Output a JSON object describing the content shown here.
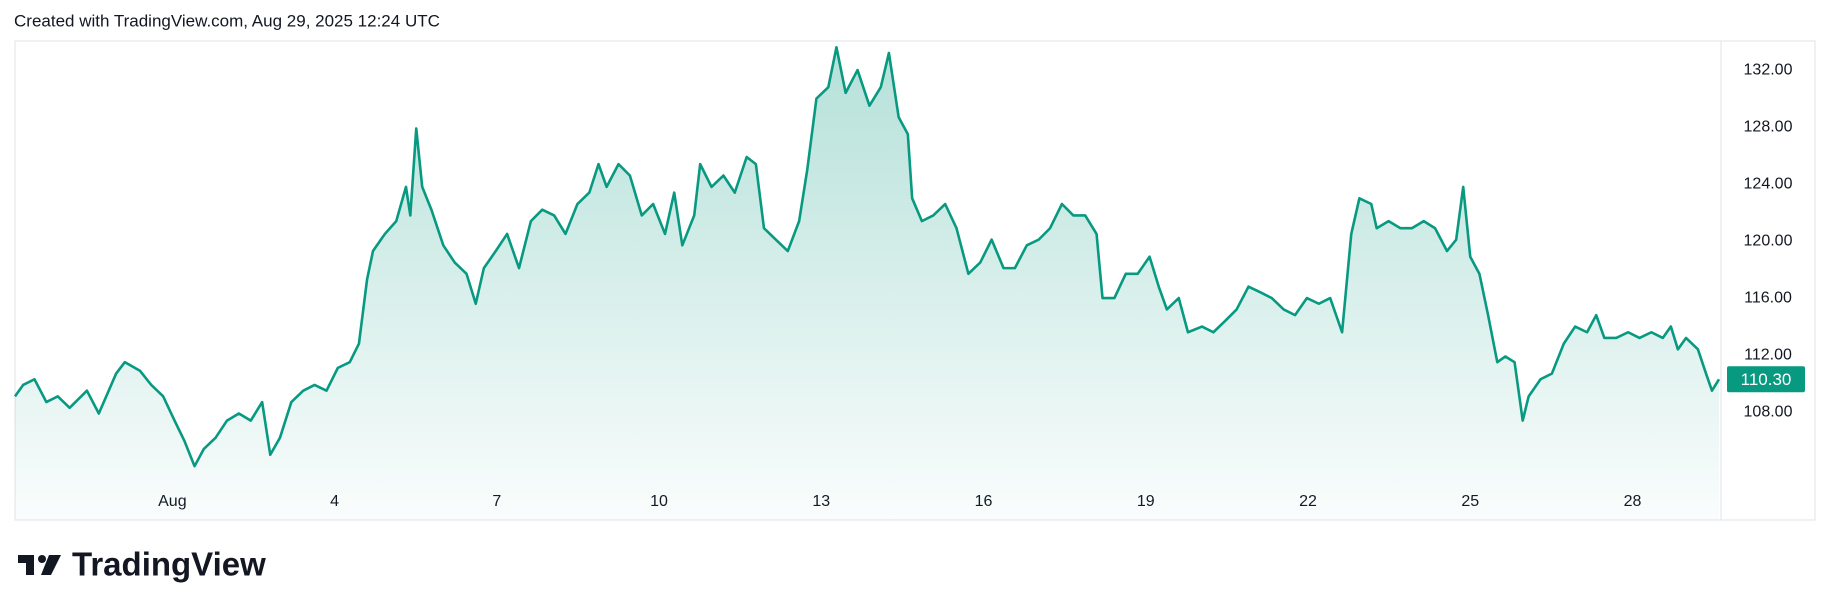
{
  "chart_data": {
    "type": "area",
    "title": "Created with TradingView.com, Aug 29, 2025 12:24 UTC",
    "watermark": "TradingView",
    "color": "#089981",
    "grid": false,
    "x": [
      -1.91,
      -1.76,
      -1.55,
      -1.33,
      -1.12,
      -0.9,
      -0.58,
      -0.36,
      -0.04,
      0.12,
      0.4,
      0.61,
      0.83,
      1.04,
      1.22,
      1.41,
      1.58,
      1.8,
      2.01,
      2.23,
      2.45,
      2.66,
      2.81,
      2.99,
      3.2,
      3.42,
      3.63,
      3.85,
      4.06,
      4.28,
      4.45,
      4.6,
      4.71,
      4.93,
      5.14,
      5.32,
      5.4,
      5.51,
      5.62,
      5.79,
      6.01,
      6.22,
      6.44,
      6.61,
      6.76,
      6.98,
      7.19,
      7.41,
      7.63,
      7.84,
      8.06,
      8.27,
      8.49,
      8.71,
      8.88,
      9.03,
      9.25,
      9.46,
      9.68,
      9.89,
      10.11,
      10.28,
      10.43,
      10.65,
      10.76,
      10.97,
      11.19,
      11.4,
      11.62,
      11.79,
      11.94,
      12.16,
      12.38,
      12.59,
      12.74,
      12.91,
      13.13,
      13.28,
      13.45,
      13.67,
      13.89,
      14.1,
      14.25,
      14.43,
      14.6,
      14.68,
      14.86,
      15.07,
      15.29,
      15.5,
      15.72,
      15.94,
      16.15,
      16.37,
      16.58,
      16.8,
      17.02,
      17.23,
      17.45,
      17.66,
      17.88,
      18.09,
      18.2,
      18.42,
      18.63,
      18.85,
      19.07,
      19.24,
      19.39,
      19.61,
      19.78,
      20.04,
      20.25,
      20.47,
      20.68,
      20.9,
      21.12,
      21.33,
      21.55,
      21.76,
      21.98,
      22.2,
      22.41,
      22.63,
      22.8,
      22.95,
      23.17,
      23.27,
      23.49,
      23.71,
      23.92,
      24.14,
      24.35,
      24.57,
      24.74,
      24.87,
      25.0,
      25.17,
      25.33,
      25.5,
      25.65,
      25.82,
      25.97,
      26.08,
      26.3,
      26.51,
      26.73,
      26.94,
      27.16,
      27.33,
      27.48,
      27.7,
      27.92,
      28.13,
      28.35,
      28.56,
      28.71,
      28.84,
      28.99,
      29.21,
      29.36,
      29.47,
      29.6
    ],
    "values": [
      109.1,
      109.9,
      110.3,
      108.7,
      109.1,
      108.3,
      109.5,
      107.9,
      110.7,
      111.5,
      110.9,
      109.9,
      109.1,
      107.4,
      106.0,
      104.2,
      105.4,
      106.2,
      107.4,
      107.9,
      107.4,
      108.7,
      105.0,
      106.2,
      108.7,
      109.5,
      109.9,
      109.5,
      111.1,
      111.5,
      112.8,
      117.3,
      119.3,
      120.5,
      121.4,
      123.8,
      121.8,
      127.9,
      123.8,
      122.2,
      119.7,
      118.5,
      117.7,
      115.6,
      118.1,
      119.3,
      120.5,
      118.1,
      121.4,
      122.2,
      121.8,
      120.5,
      122.6,
      123.4,
      125.4,
      123.8,
      125.4,
      124.6,
      121.8,
      122.6,
      120.5,
      123.4,
      119.7,
      121.8,
      125.4,
      123.8,
      124.6,
      123.4,
      125.9,
      125.4,
      120.9,
      120.1,
      119.3,
      121.4,
      125.0,
      130.0,
      130.8,
      133.6,
      130.4,
      132.0,
      129.5,
      130.8,
      133.2,
      128.7,
      127.5,
      123.0,
      121.4,
      121.8,
      122.6,
      120.9,
      117.7,
      118.5,
      120.1,
      118.1,
      118.1,
      119.7,
      120.1,
      120.9,
      122.6,
      121.8,
      121.8,
      120.5,
      116.0,
      116.0,
      117.7,
      117.7,
      118.9,
      116.8,
      115.2,
      116.0,
      113.6,
      114.0,
      113.6,
      114.4,
      115.2,
      116.8,
      116.4,
      116.0,
      115.2,
      114.8,
      116.0,
      115.6,
      116.0,
      113.6,
      120.5,
      123.0,
      122.6,
      120.9,
      121.4,
      120.9,
      120.9,
      121.4,
      120.9,
      119.3,
      120.1,
      123.8,
      118.9,
      117.7,
      114.8,
      111.5,
      111.9,
      111.5,
      107.4,
      109.1,
      110.3,
      110.7,
      112.8,
      114.0,
      113.6,
      114.8,
      113.2,
      113.2,
      113.6,
      113.2,
      113.6,
      113.2,
      114.0,
      112.4,
      113.2,
      112.4,
      110.7,
      109.5,
      110.3
    ],
    "xlim": [
      -1.91,
      29.6
    ],
    "xticks": [
      {
        "value": 1,
        "label": "Aug"
      },
      4,
      7,
      10,
      13,
      16,
      19,
      22,
      25,
      28
    ],
    "ylim": [
      102.95,
      134.04
    ],
    "yticks": [
      {
        "value": 108,
        "label": "108.00"
      },
      {
        "value": 112,
        "label": "112.00"
      },
      {
        "value": 116,
        "label": "116.00"
      },
      {
        "value": 120,
        "label": "120.00"
      },
      {
        "value": 124,
        "label": "124.00"
      },
      {
        "value": 128,
        "label": "128.00"
      },
      {
        "value": 132,
        "label": "132.00"
      }
    ],
    "last_price": {
      "value": 110.3,
      "label": "110.30"
    }
  }
}
